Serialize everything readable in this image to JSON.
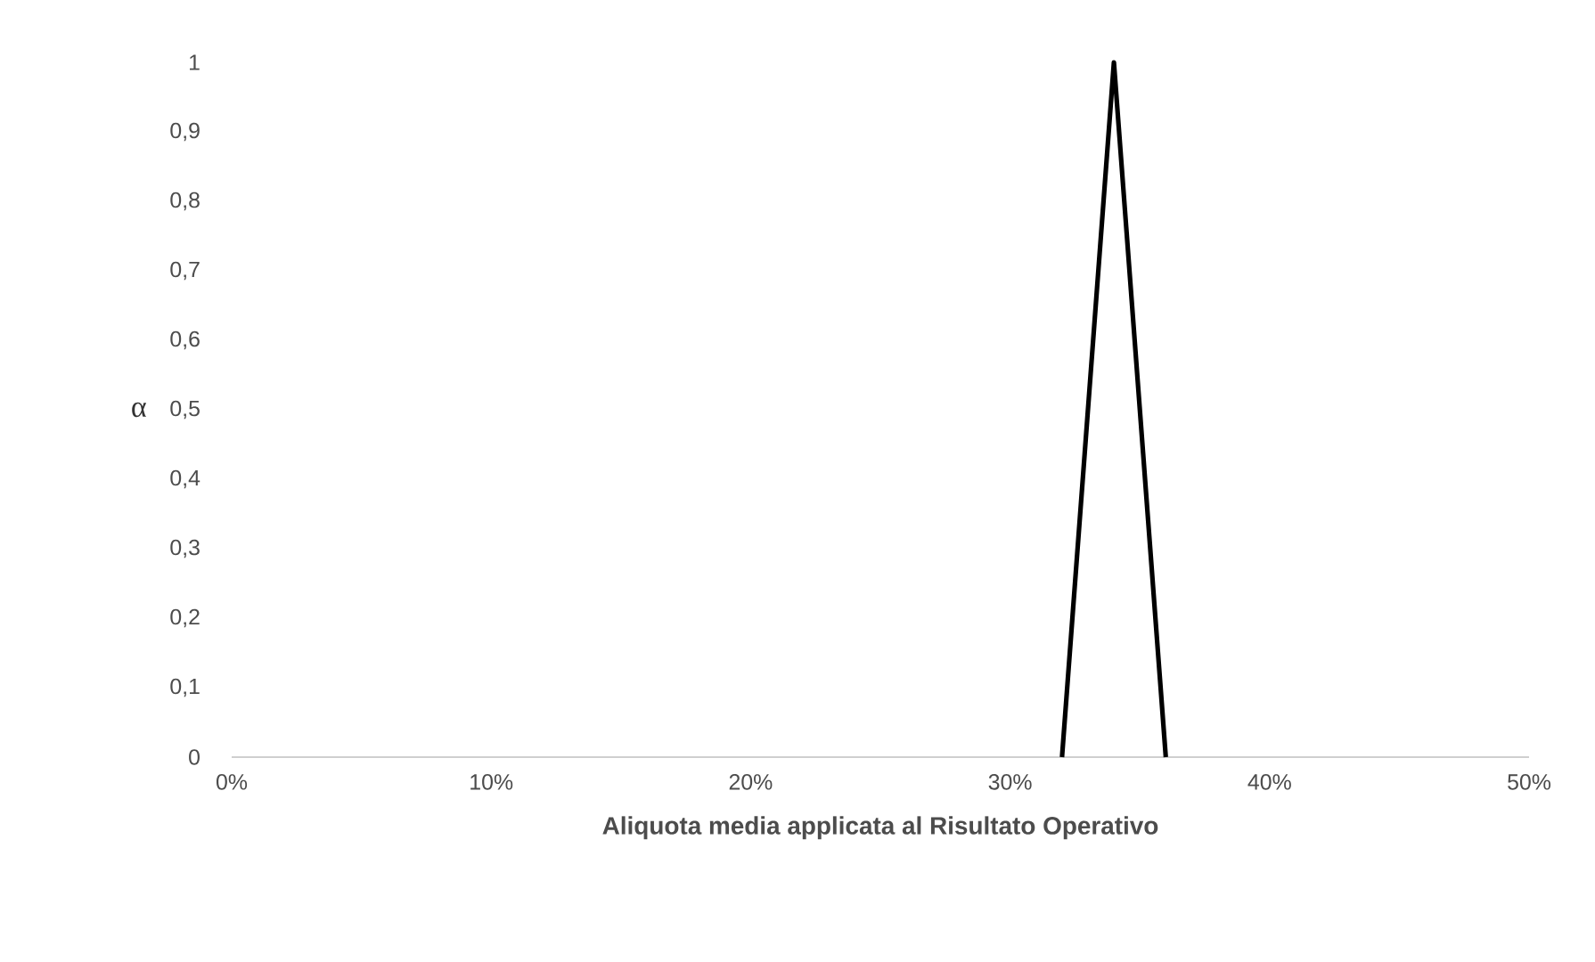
{
  "chart_data": {
    "type": "line",
    "xlabel": "Aliquota media applicata al Risultato Operativo",
    "ylabel": "α",
    "x": [
      32,
      34,
      36
    ],
    "series": [
      {
        "color": "#000000",
        "values": [
          0,
          1,
          0
        ]
      }
    ],
    "xlim": [
      0,
      50
    ],
    "xticks": [
      {
        "value": 0,
        "label": "0%"
      },
      {
        "value": 10,
        "label": "10%"
      },
      {
        "value": 20,
        "label": "20%"
      },
      {
        "value": 30,
        "label": "30%"
      },
      {
        "value": 40,
        "label": "40%"
      },
      {
        "value": 50,
        "label": "50%"
      }
    ],
    "ylim": [
      0,
      1
    ],
    "yticks": [
      0,
      {
        "value": 0.1,
        "label": "0,1"
      },
      {
        "value": 0.2,
        "label": "0,2"
      },
      {
        "value": 0.3,
        "label": "0,3"
      },
      {
        "value": 0.4,
        "label": "0,4"
      },
      {
        "value": 0.5,
        "label": "0,5"
      },
      {
        "value": 0.6,
        "label": "0,6"
      },
      {
        "value": 0.7,
        "label": "0,7"
      },
      {
        "value": 0.8,
        "label": "0,8"
      },
      {
        "value": 0.9,
        "label": "0,9"
      },
      1
    ],
    "grid": false,
    "marker": "none",
    "line_style": "solid"
  }
}
